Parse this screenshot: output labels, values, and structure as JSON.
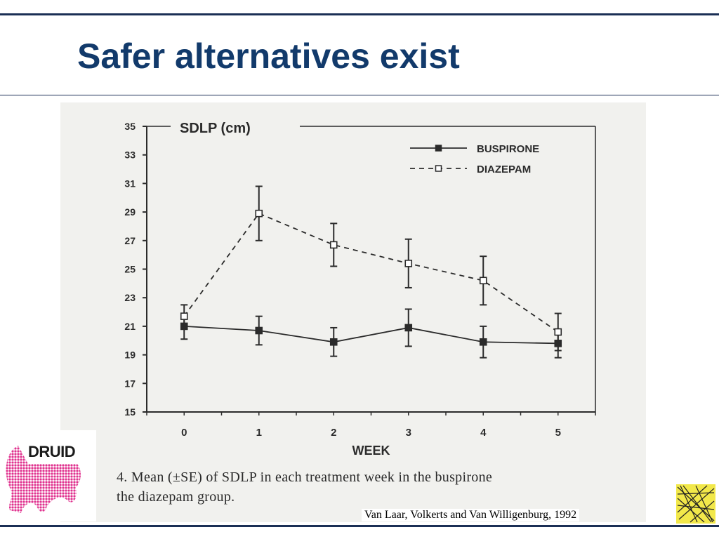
{
  "slide": {
    "title": "Safer alternatives exist",
    "caption_line1": "4. Mean (±SE) of SDLP in each treatment week in the buspirone",
    "caption_line2": "the diazepam group.",
    "citation": "Van Laar, Volkerts and Van Willigenburg, 1992",
    "logo_text": "DRUID",
    "colors": {
      "title": "#123a6b",
      "rule": "#1b2f55",
      "logo_pink": "#e0338f",
      "corner_yellow": "#f2e84a"
    },
    "icons": [
      "druid-logo",
      "crosshatch-emblem"
    ]
  },
  "chart_data": {
    "type": "line",
    "title": "SDLP (cm)",
    "xlabel": "WEEK",
    "ylabel": "",
    "categories": [
      "0",
      "1",
      "2",
      "3",
      "4",
      "5"
    ],
    "x": [
      0,
      1,
      2,
      3,
      4,
      5
    ],
    "xlim": [
      -0.5,
      5.5
    ],
    "ylim": [
      15,
      35
    ],
    "yticks": [
      "15",
      "17",
      "19",
      "21",
      "23",
      "25",
      "27",
      "29",
      "31",
      "33",
      "35"
    ],
    "grid": false,
    "legend_position": "top-right",
    "series": [
      {
        "name": "BUSPIRONE",
        "style": "solid",
        "marker": "filled-square",
        "values": [
          21.0,
          20.7,
          19.9,
          20.9,
          19.9,
          19.8
        ],
        "se": [
          0.9,
          1.0,
          1.0,
          1.3,
          1.1,
          1.0
        ]
      },
      {
        "name": "DIAZEPAM",
        "style": "dashed",
        "marker": "open-square",
        "values": [
          21.7,
          28.9,
          26.7,
          25.4,
          24.2,
          20.6
        ],
        "se": [
          0.8,
          1.9,
          1.5,
          1.7,
          1.7,
          1.3
        ]
      }
    ]
  }
}
